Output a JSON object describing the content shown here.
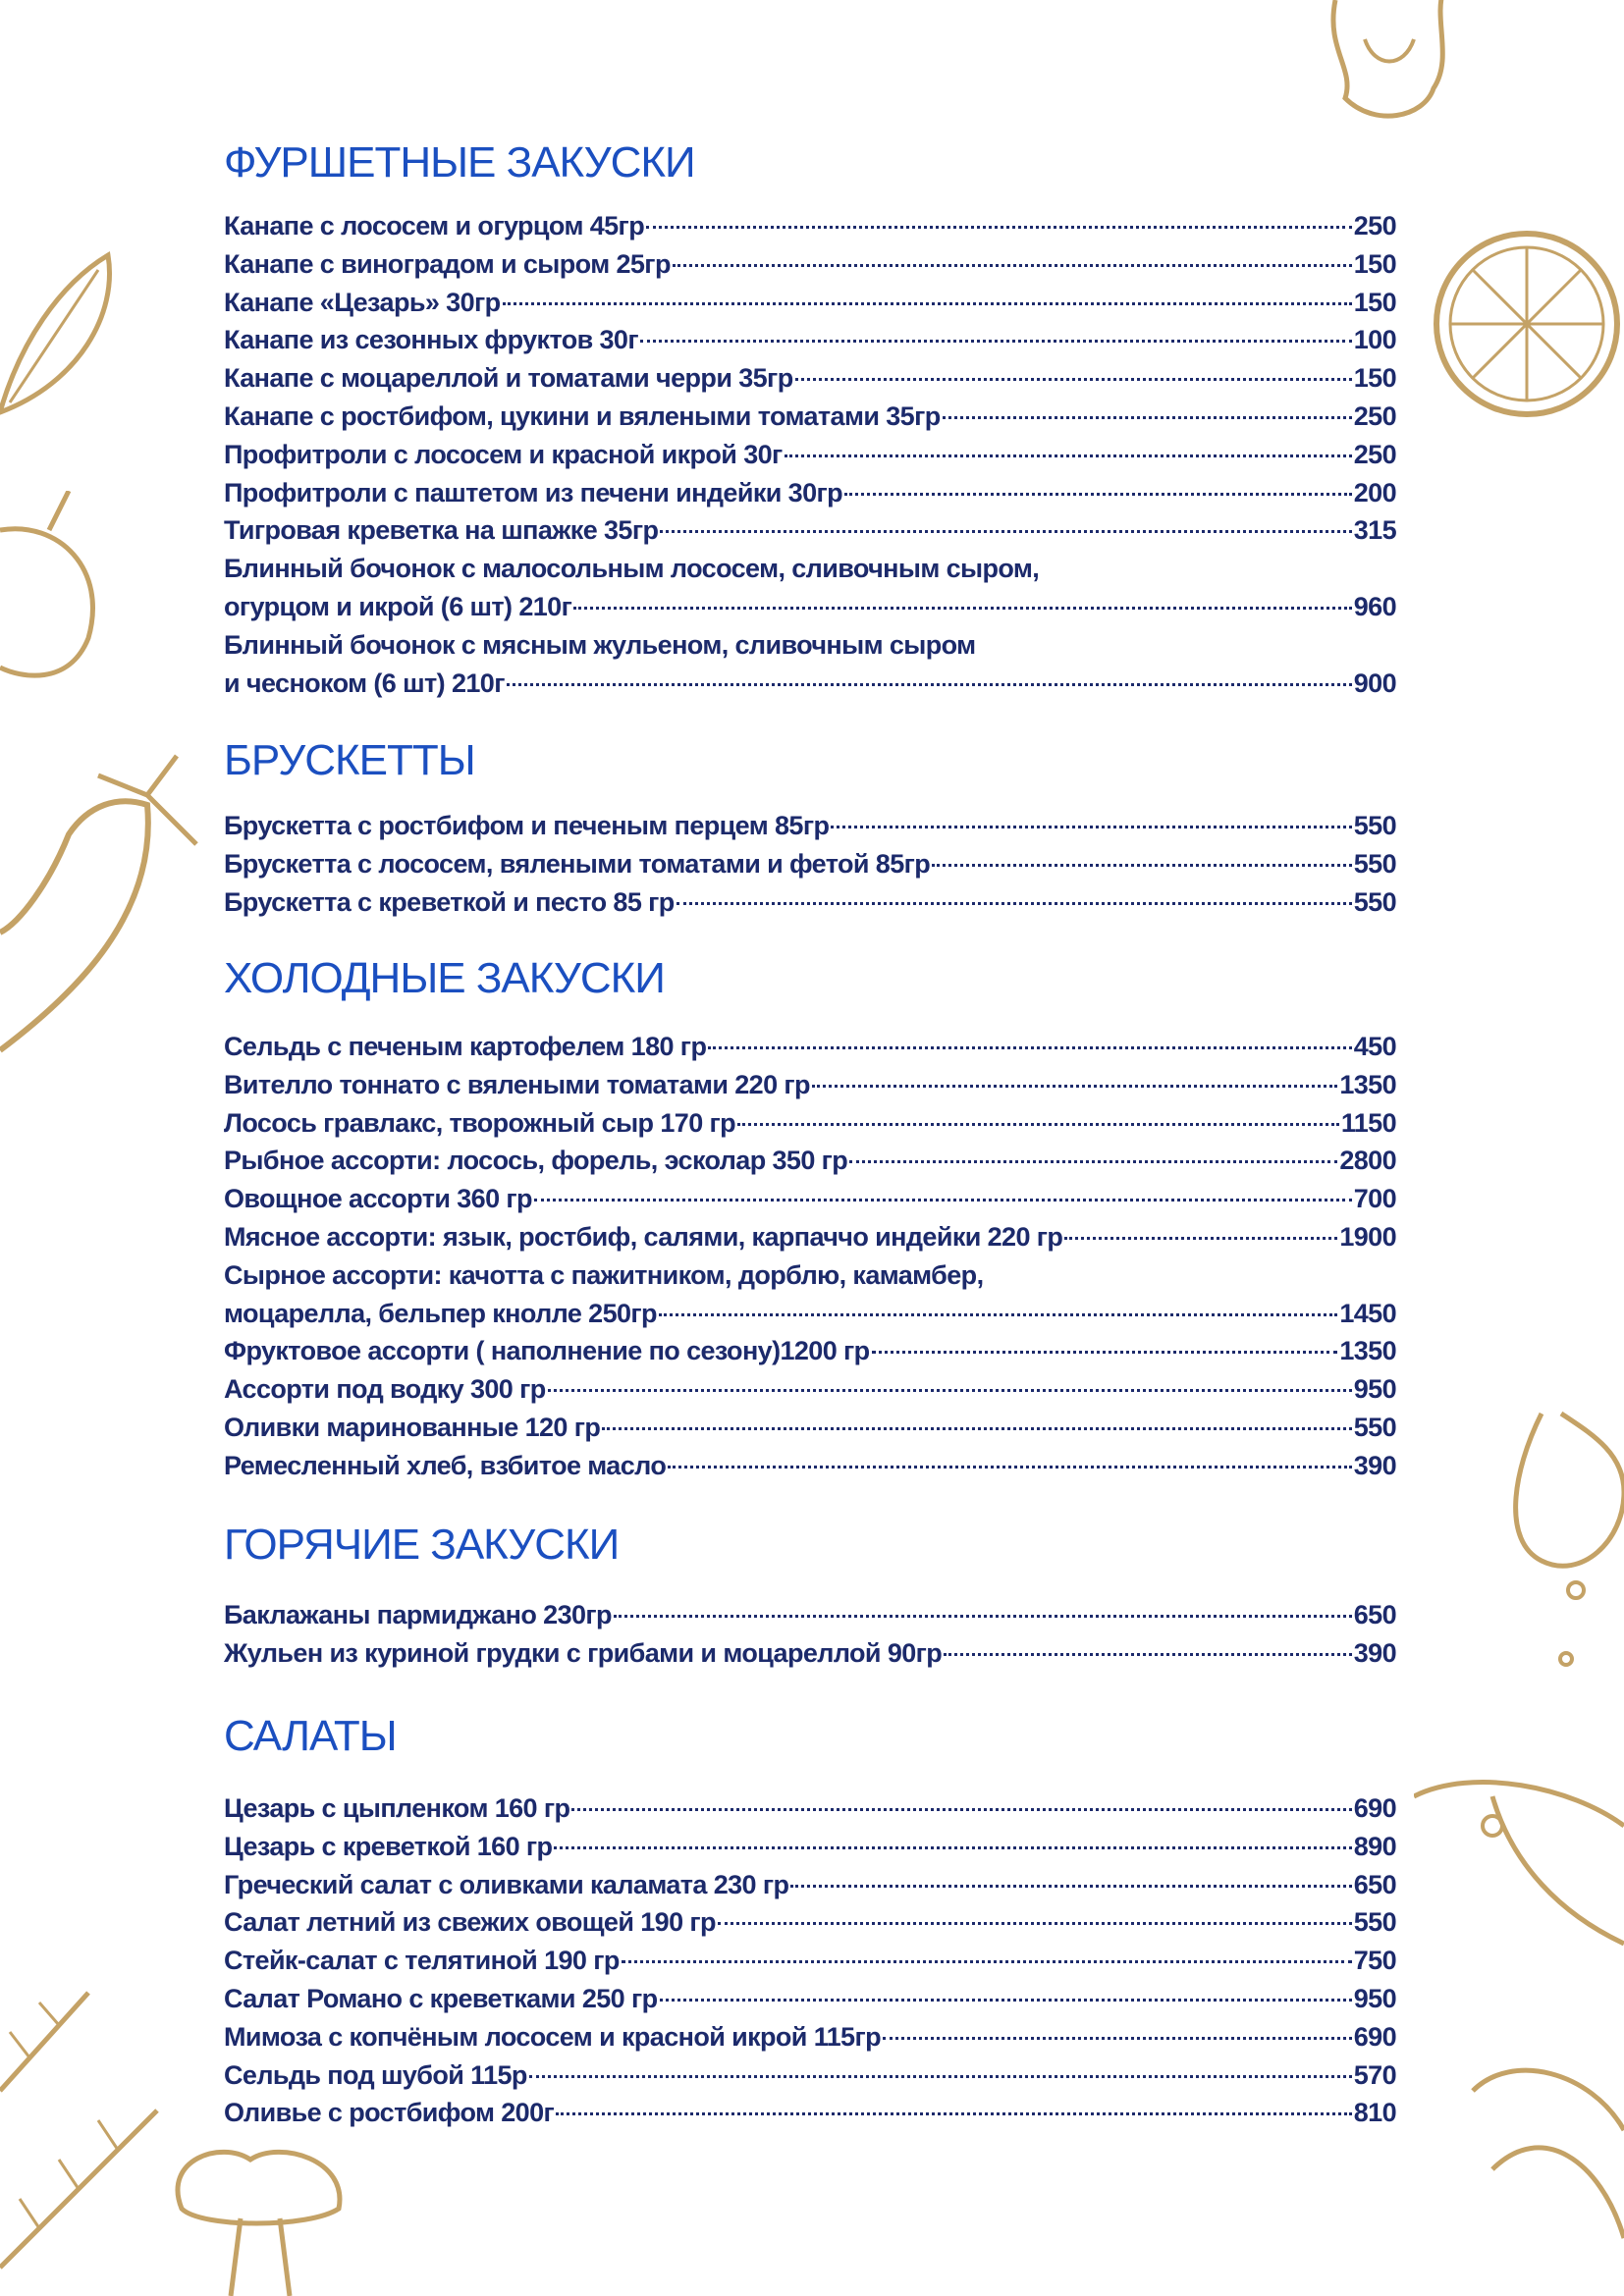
{
  "colors": {
    "heading": "#1b4fc0",
    "text": "#1c2a6b",
    "decoration": "#c4a266"
  },
  "sections": [
    {
      "title": "ФУРШЕТНЫЕ ЗАКУСКИ",
      "items": [
        {
          "name": "Канапе с лососем и огурцом 45гр",
          "price": "250"
        },
        {
          "name": "Канапе с виноградом и сыром 25гр",
          "price": "150"
        },
        {
          "name": "Канапе «Цезарь» 30гр",
          "price": "150"
        },
        {
          "name": "Канапе из сезонных фруктов 30г",
          "price": "100"
        },
        {
          "name": "Канапе с моцареллой и томатами черри 35гр",
          "price": "150"
        },
        {
          "name": "Канапе с ростбифом, цукини и вялеными томатами 35гр",
          "price": "250"
        },
        {
          "name": "Профитроли с лососем и красной икрой 30г",
          "price": "250"
        },
        {
          "name": "Профитроли с паштетом из печени индейки  30гр",
          "price": "200"
        },
        {
          "name": "Тигровая креветка на шпажке 35гр",
          "price": "315"
        },
        {
          "line1": "Блинный бочонок с малосольным лососем, сливочным сыром,",
          "name": "огурцом и икрой (6 шт) 210г",
          "price": "960"
        },
        {
          "line1": "Блинный бочонок с мясным жульеном, сливочным сыром",
          "name": "и чесноком (6 шт) 210г",
          "price": "900"
        }
      ]
    },
    {
      "title": "БРУСКЕТТЫ",
      "items": [
        {
          "name": "Брускетта с ростбифом и печеным перцем 85гр",
          "price": "550"
        },
        {
          "name": "Брускетта с лососем, вялеными томатами и фетой 85гр",
          "price": "550"
        },
        {
          "name": "Брускетта с креветкой и песто  85 гр",
          "price": "550"
        }
      ]
    },
    {
      "title": "ХОЛОДНЫЕ ЗАКУСКИ",
      "items": [
        {
          "name": "Сельдь с печеным картофелем 180 гр",
          "price": "450"
        },
        {
          "name": "Вителло тоннато с вялеными томатами 220 гр",
          "price": "1350"
        },
        {
          "name": "Лосось гравлакс, творожный сыр 170 гр",
          "price": "1150"
        },
        {
          "name": "Рыбное ассорти: лосось, форель, эсколар 350 гр",
          "price": "2800"
        },
        {
          "name": "Овощное ассорти  360 гр",
          "price": "700"
        },
        {
          "name": "Мясное ассорти: язык, ростбиф, салями, карпаччо индейки 220 гр",
          "price": "1900"
        },
        {
          "line1": "Сырное ассорти: качотта с пажитником, дорблю, камамбер,",
          "name": "моцарелла, бельпер кнолле 250гр",
          "price": "1450"
        },
        {
          "name": "Фруктовое ассорти ( наполнение по сезону)1200 гр",
          "price": "1350"
        },
        {
          "name": "Ассорти под водку 300 гр",
          "price": "950"
        },
        {
          "name": "Оливки маринованные 120 гр",
          "price": "550"
        },
        {
          "name": "Ремесленный хлеб, взбитое масло",
          "price": "390"
        }
      ]
    },
    {
      "title": "ГОРЯЧИЕ ЗАКУСКИ",
      "items": [
        {
          "name": "Баклажаны пармиджано 230гр",
          "price": "650"
        },
        {
          "name": "Жульен из куриной грудки с грибами и моцареллой 90гр",
          "price": "390"
        }
      ]
    },
    {
      "title": "САЛАТЫ",
      "items": [
        {
          "name": "Цезарь с цыпленком 160 гр",
          "price": "690"
        },
        {
          "name": "Цезарь с креветкой 160 гр",
          "price": "890"
        },
        {
          "name": "Греческий салат с оливками каламата 230 гр",
          "price": "650"
        },
        {
          "name": "Салат летний из свежих овощей 190 гр",
          "price": "550"
        },
        {
          "name": "Стейк-салат с телятиной 190 гр",
          "price": "750"
        },
        {
          "name": "Салат Романо с креветками 250 гр",
          "price": "950"
        },
        {
          "name": "Мимоза с копчёным лососем и красной икрой 115гр",
          "price": "690"
        },
        {
          "name": "Сельдь под шубой 115р",
          "price": "570"
        },
        {
          "name": "Оливье с ростбифом 200г",
          "price": "810"
        }
      ]
    }
  ]
}
